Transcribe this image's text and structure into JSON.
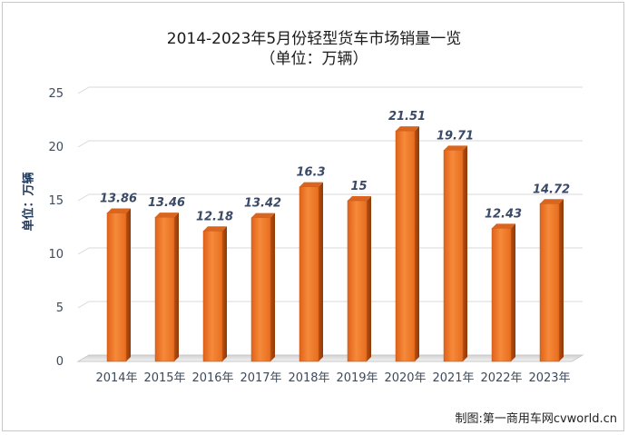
{
  "title": "2014-2023年5月份轻型货车市场销量一览",
  "subtitle": "（单位：万辆）",
  "credit": "制图:第一商用车网cvworld.cn",
  "chart_data": {
    "type": "bar",
    "title": "2014-2023年5月份轻型货车市场销量一览",
    "subtitle": "（单位：万辆）",
    "ylabel": "单位：万辆",
    "xlabel": "",
    "categories": [
      "2014年",
      "2015年",
      "2016年",
      "2017年",
      "2018年",
      "2019年",
      "2020年",
      "2021年",
      "2022年",
      "2023年"
    ],
    "values": [
      13.86,
      13.46,
      12.18,
      13.42,
      16.3,
      15,
      21.51,
      19.71,
      12.43,
      14.72
    ],
    "data_labels": [
      "13.86",
      "13.46",
      "12.18",
      "13.42",
      "16.3",
      "15",
      "21.51",
      "19.71",
      "12.43",
      "14.72"
    ],
    "ylim": [
      0,
      25
    ],
    "yticks": [
      "0",
      "5",
      "10",
      "15",
      "20",
      "25"
    ],
    "grid": true,
    "bar_color": "#f07a24"
  }
}
